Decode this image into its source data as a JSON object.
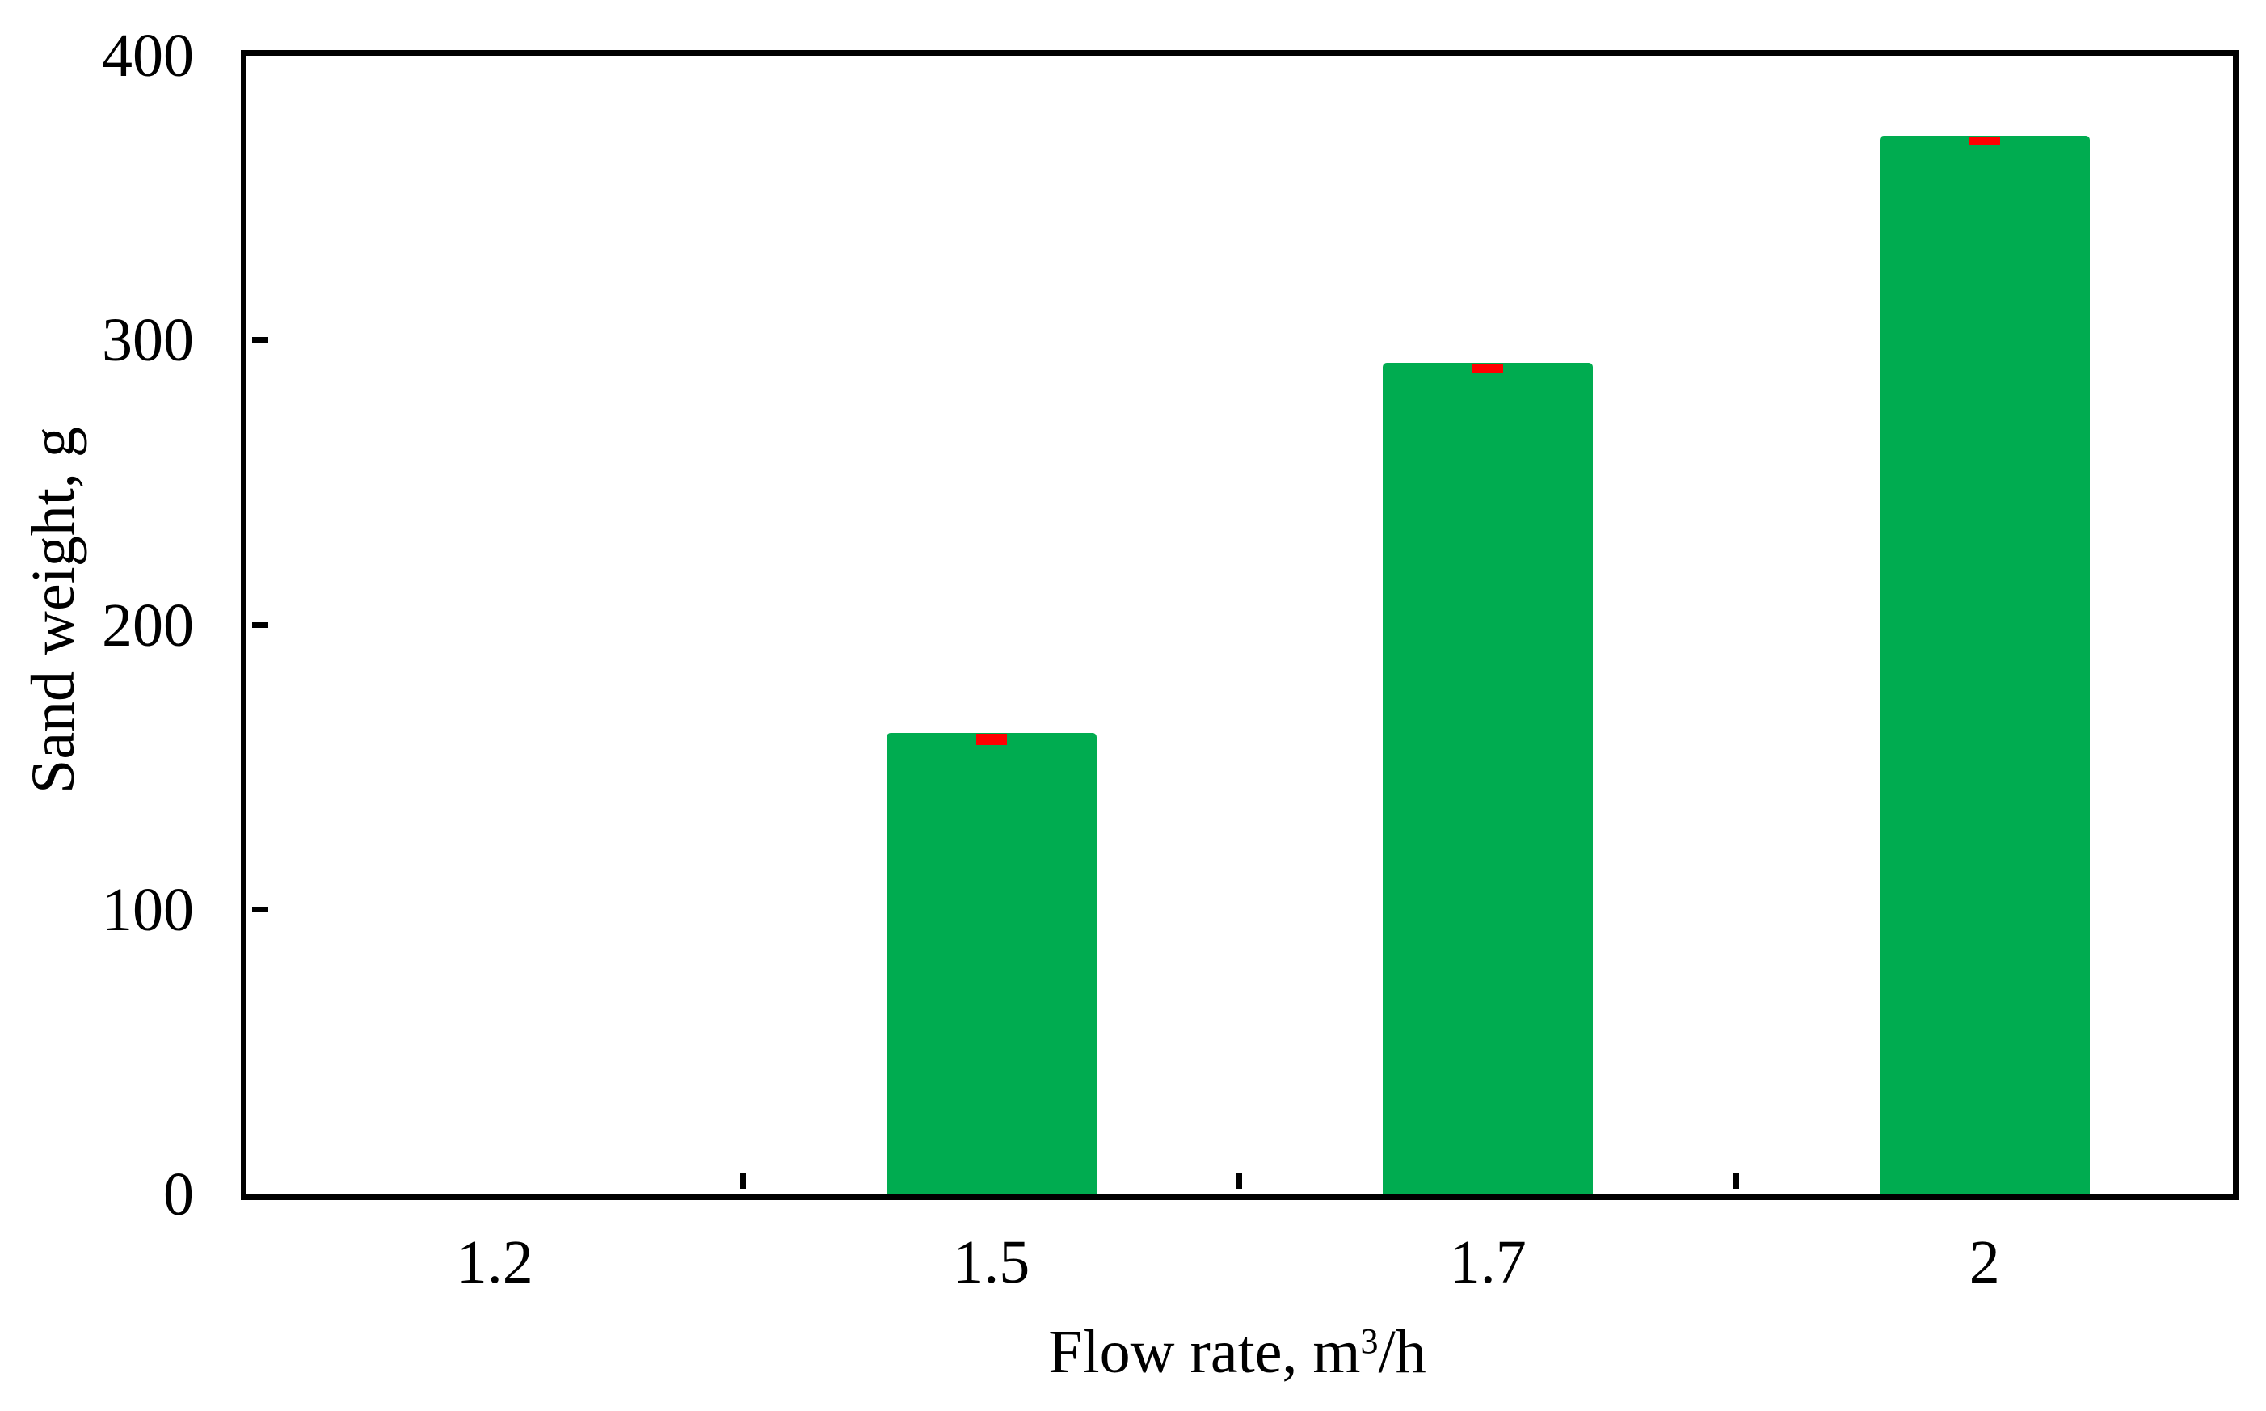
{
  "chart_data": {
    "type": "bar",
    "title": "",
    "categories": [
      "1.2",
      "1.5",
      "1.7",
      "2"
    ],
    "series": [
      {
        "name": "Sand weight",
        "values": [
          0,
          162,
          292,
          372
        ],
        "errors": [
          0,
          2,
          1.5,
          1.5
        ]
      }
    ],
    "xlabel": {
      "prefix": "Flow rate, m",
      "sup": "3",
      "suffix": "/h"
    },
    "ylabel": "Sand weight, g",
    "ylim": [
      0,
      400
    ],
    "y_ticks": [
      0,
      100,
      200,
      300,
      400
    ],
    "grid": false,
    "legend_position": "none",
    "colors": {
      "bar": "#00AC50",
      "error": "#FF0000",
      "axis": "#000000",
      "background": "#FFFFFF"
    }
  }
}
